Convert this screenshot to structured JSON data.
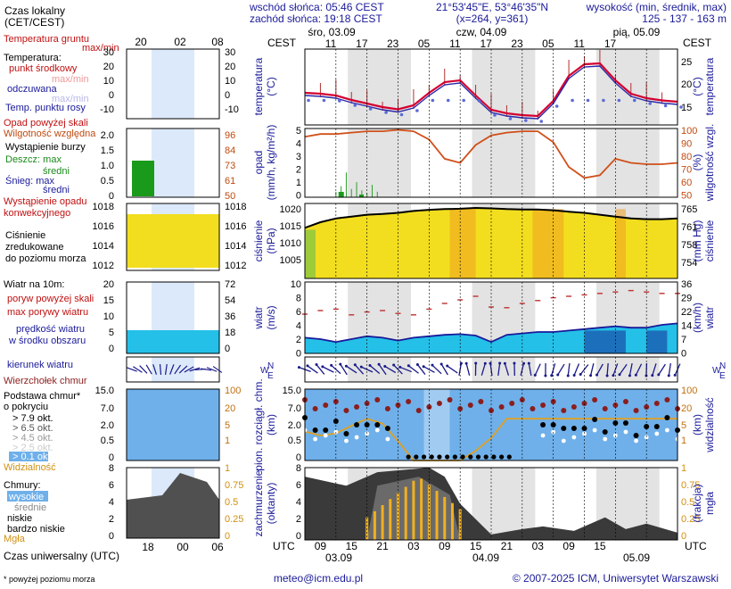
{
  "header": {
    "time_legend_1": "Czas lokalny",
    "time_legend_2": "(CET/CEST)",
    "sunrise": "wschód słońca: 05:46 CEST",
    "sunset": "zachód słońca: 19:18 CEST",
    "coords": "21°53'45\"E, 53°46'35\"N",
    "grid": "(x=264, y=361)",
    "height_label": "wysokość (min, średnik, max)",
    "height_values": "125 - 137 - 163 m",
    "tz_left": "CEST",
    "tz_right": "CEST",
    "day_labels": [
      "śro, 03.09",
      "czw, 04.09",
      "pią, 05.09"
    ],
    "local_hours": [
      "11",
      "17",
      "23",
      "05",
      "11",
      "17",
      "23",
      "05",
      "11",
      "17"
    ],
    "legend_hours": [
      "20",
      "02",
      "08"
    ]
  },
  "footer": {
    "utc_left": "UTC",
    "utc_right": "UTC",
    "utc_hours": [
      "09",
      "15",
      "21",
      "03",
      "09",
      "15",
      "21",
      "03",
      "09",
      "15"
    ],
    "utc_dates": [
      "03.09",
      "04.09",
      "05.09"
    ],
    "legend_utc_hours": [
      "18",
      "00",
      "06"
    ],
    "legend_utc_label": "Czas uniwersalny (UTC)",
    "email": "meteo@icm.edu.pl",
    "copyright": "© 2007-2025 ICM, Uniwersytet Warszawski",
    "footnote": "* powyżej poziomu morza"
  },
  "legend": {
    "temp": {
      "title_ground": "Temperatura gruntu",
      "ground_maxmin": "max/min",
      "title_temp": "Temperatura:",
      "center_point": "punkt środkowy",
      "maxmin": "max/min",
      "perceived": "odczuwana",
      "maxmin2": "max/min",
      "dew": "Temp. punktu rosy",
      "ticks": [
        "30",
        "20",
        "10",
        "0",
        "-10"
      ]
    },
    "precip": {
      "above_scale": "Opad powyżej skali",
      "humidity": "Wilgotność względna",
      "storm": "Wystąpienie burzy",
      "rain": "Deszcz: max",
      "rain_mean": "średni",
      "snow": "Śnieg: max",
      "snow_mean": "średni",
      "conv_1": "Wystąpienie opadu",
      "conv_2": "konwekcyjnego",
      "ticks_left": [
        "2.0",
        "1.5",
        "1.0",
        "0.5",
        "0"
      ],
      "ticks_right": [
        "96",
        "84",
        "73",
        "61",
        "50"
      ]
    },
    "pressure": {
      "l1": "Ciśnienie",
      "l2": "zredukowane",
      "l3": "do poziomu morza",
      "ticks_left": [
        "1018",
        "1016",
        "1014",
        "1012"
      ],
      "ticks_right": [
        "1018",
        "1016",
        "1014",
        "1012"
      ]
    },
    "wind": {
      "title": "Wiatr na 10m:",
      "gust_above": "poryw powyżej skali",
      "gust_max": "max porywy wiatru",
      "speed_1": "prędkość wiatru",
      "speed_2": "w środku obszaru",
      "ticks_left": [
        "20",
        "15",
        "10",
        "5",
        "0"
      ],
      "ticks_right": [
        "72",
        "54",
        "36",
        "18",
        "0"
      ]
    },
    "direction": {
      "label": "kierunek wiatru"
    },
    "cloud_base": {
      "cb_top": "Wierzchołek chmur",
      "title_1": "Podstawa chmur*",
      "title_2": "o pokryciu",
      "o79": "> 7.9 okt.",
      "o65": "> 6.5 okt.",
      "o45": "> 4.5 okt.",
      "o25": "> 2.5 okt.",
      "o01": "> 0.1 okt.",
      "visibility": "Widzialność",
      "ticks_left": [
        "15.0",
        "7.0",
        "2.0",
        "0.5",
        "0"
      ],
      "ticks_right": [
        "100",
        "20",
        "5",
        "1"
      ]
    },
    "clouds": {
      "title": "Chmury:",
      "high": "wysokie",
      "mid": "średnie",
      "low": "niskie",
      "very_low": "bardzo niskie",
      "fog": "Mgła",
      "ticks_left": [
        "8",
        "6",
        "4",
        "2",
        "0"
      ],
      "ticks_right": [
        "1",
        "0.75",
        "0.5",
        "0.25",
        "0"
      ]
    }
  },
  "axes": {
    "temperature": {
      "ylabel_l": "temperatura",
      "unit_l": "(°C)",
      "ylabel_r": "temperatura",
      "unit_r": "(°C)",
      "ticks": [
        "25",
        "20",
        "15"
      ],
      "ylim": [
        12,
        29
      ]
    },
    "precip": {
      "ylabel_l": "opad",
      "unit_l": "(mm/h, kg/m²/h)",
      "ylabel_r": "wilgotność wzgl.",
      "unit_r": "(%)",
      "ticks_left": [
        "5",
        "4",
        "3",
        "2",
        "1",
        "0"
      ],
      "ticks_right": [
        "100",
        "90",
        "80",
        "70",
        "60",
        "50"
      ]
    },
    "pressure": {
      "ylabel_l": "ciśnienie",
      "unit_l": "(hPa)",
      "ylabel_r": "ciśnienie",
      "unit_r": "(mm Hg)",
      "ticks_left": [
        "1020",
        "1015",
        "1010",
        "1005"
      ],
      "ticks_right": [
        "765",
        "761",
        "758",
        "754"
      ],
      "ylim": [
        1001,
        1021
      ]
    },
    "wind": {
      "ylabel_l": "wiatr",
      "unit_l": "(m/s)",
      "ylabel_r": "wiatr",
      "unit_r": "(km/h)",
      "ticks_left": [
        "10",
        "8",
        "6",
        "4",
        "2",
        "0"
      ],
      "ticks_right": [
        "36",
        "29",
        "22",
        "14",
        "7",
        "0"
      ]
    },
    "direction": {
      "compass": [
        "N",
        "W",
        "E",
        "S"
      ]
    },
    "clouds_base": {
      "ylabel_l": "pion. rozciągł. chm.",
      "unit_l": "(km)",
      "ylabel_r": "widzialność",
      "unit_r": "(km)",
      "ticks_left": [
        "15.0",
        "7.0",
        "2.0",
        "0.5",
        "0"
      ],
      "ticks_right": [
        "100",
        "20",
        "5",
        "1"
      ]
    },
    "cloud_cover": {
      "ylabel_l": "zachmurzenie",
      "unit_l": "(oktanty)",
      "ylabel_r": "mgła",
      "unit_r": "(frakcja)",
      "ticks_left": [
        "8",
        "6",
        "4",
        "2",
        "0"
      ],
      "ticks_right": [
        "1",
        "0.75",
        "0.5",
        "0.25",
        "0"
      ]
    }
  },
  "chart_data": {
    "type": "line",
    "hours_from_start": [
      0,
      3,
      6,
      9,
      12,
      15,
      18,
      21,
      24,
      27,
      30,
      33,
      36,
      39,
      42,
      45,
      48,
      51,
      54,
      57,
      60,
      63,
      66,
      69,
      72
    ],
    "series": [
      {
        "name": "punkt środkowy",
        "values": [
          19.2,
          19.0,
          18.6,
          17.6,
          16.8,
          16.0,
          15.5,
          16.4,
          19.2,
          21.6,
          22.0,
          18.6,
          15.4,
          14.6,
          14.2,
          14.0,
          17.4,
          23.0,
          25.6,
          25.8,
          22.0,
          19.0,
          18.0,
          17.5,
          17.2
        ]
      },
      {
        "name": "Wilgotność względna",
        "values": [
          94,
          96,
          96,
          97,
          98,
          98,
          99,
          98,
          92,
          78,
          75,
          88,
          95,
          97,
          98,
          98,
          90,
          72,
          64,
          66,
          78,
          75,
          74,
          74,
          75
        ]
      },
      {
        "name": "Ciśnienie",
        "values": [
          1014.5,
          1016,
          1017,
          1017.5,
          1018,
          1018.2,
          1018.5,
          1019,
          1019.3,
          1019.5,
          1019.6,
          1019.8,
          1019.7,
          1019.5,
          1019.4,
          1019.4,
          1019.2,
          1018.8,
          1018.5,
          1018.0,
          1017.5,
          1017.0,
          1016.8,
          1016.8,
          1017
        ]
      },
      {
        "name": "prędkość wiatru",
        "values": [
          2.2,
          2.0,
          1.6,
          2.0,
          2.4,
          2.2,
          1.8,
          2.2,
          2.4,
          2.6,
          2.7,
          2.5,
          1.6,
          2.6,
          2.8,
          3.0,
          3.0,
          3.2,
          3.4,
          3.6,
          3.8,
          3.6,
          3.6,
          4.0,
          4.2
        ]
      },
      {
        "name": "max porywy wiatru",
        "values": [
          5.5,
          6.0,
          6.2,
          5.4,
          5.8,
          6.0,
          5.6,
          5.4,
          6.2,
          7.0,
          7.5,
          8.0,
          6.5,
          6.4,
          7.0,
          7.4,
          7.8,
          8.0,
          8.2,
          8.4,
          8.6,
          8.8,
          8.6,
          8.4,
          8.4
        ]
      },
      {
        "name": "Widzialność",
        "values": [
          8,
          6,
          7,
          12,
          20,
          14,
          4,
          1,
          1,
          1,
          1,
          2,
          5,
          20,
          20,
          20,
          20,
          20,
          20,
          20,
          20,
          20,
          20,
          20,
          20
        ]
      }
    ]
  }
}
